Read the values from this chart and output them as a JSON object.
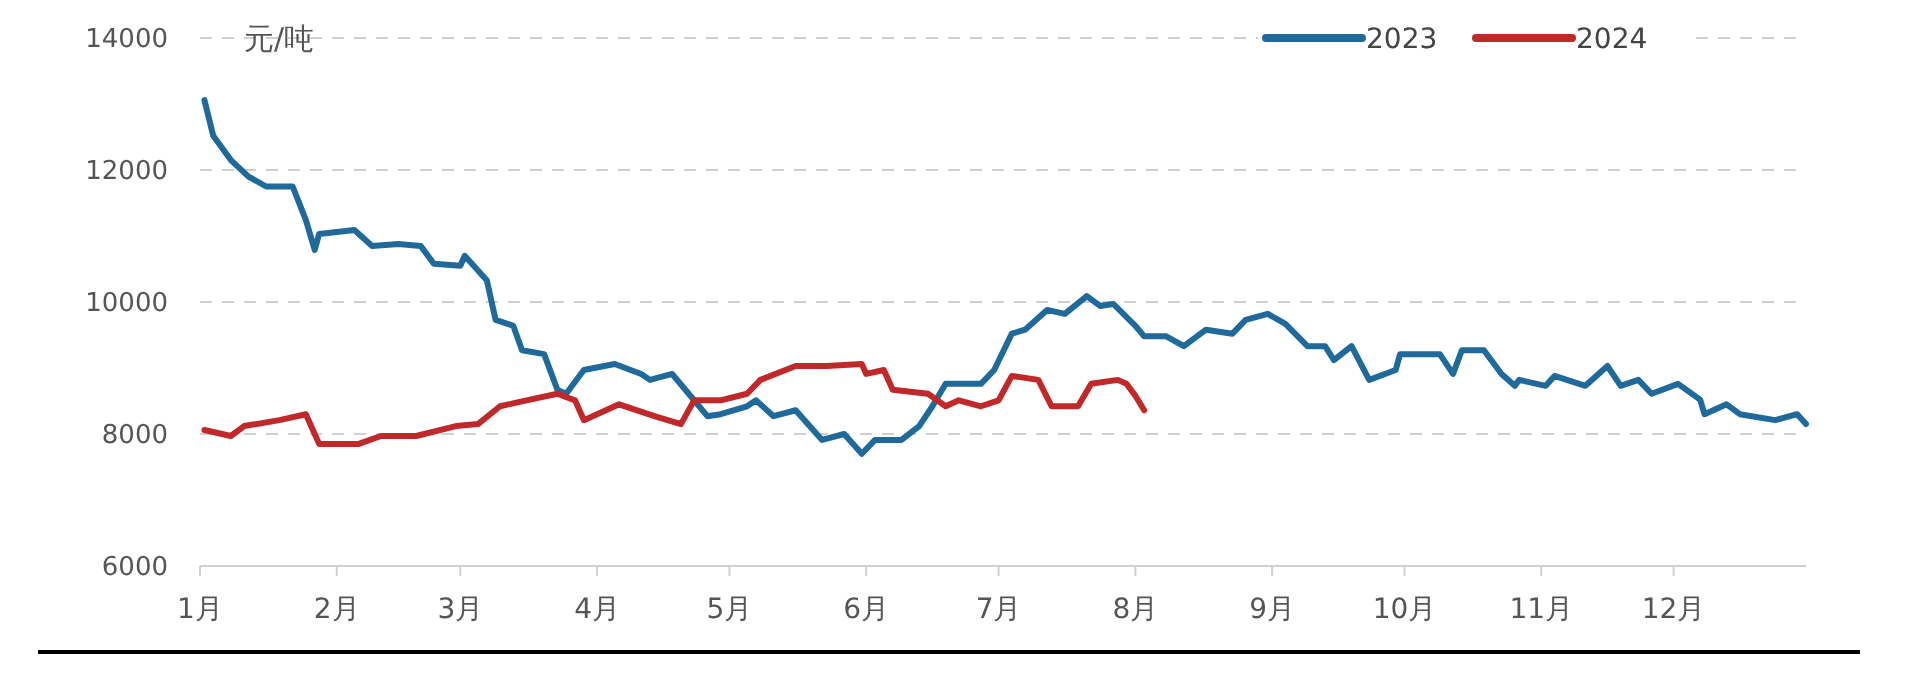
{
  "chart_data": {
    "type": "line",
    "ylabel": "元/吨",
    "xlim": [
      "--01-01",
      "--12-31"
    ],
    "xticks": [
      {
        "value": "--01-01",
        "label": "1月"
      },
      {
        "value": "--02-01",
        "label": "2月"
      },
      {
        "value": "--03-01",
        "label": "3月"
      },
      {
        "value": "--04-01",
        "label": "4月"
      },
      {
        "value": "--05-01",
        "label": "5月"
      },
      {
        "value": "--06-01",
        "label": "6月"
      },
      {
        "value": "--07-01",
        "label": "7月"
      },
      {
        "value": "--08-01",
        "label": "8月"
      },
      {
        "value": "--09-01",
        "label": "9月"
      },
      {
        "value": "--10-01",
        "label": "10月"
      },
      {
        "value": "--11-01",
        "label": "11月"
      },
      {
        "value": "--12-01",
        "label": "12月"
      }
    ],
    "ylim": [
      6000,
      14000
    ],
    "yticks": [
      6000,
      8000,
      10000,
      12000,
      14000
    ],
    "grid": "y",
    "legend": "top right",
    "line_style": "solid",
    "marker": "none",
    "series": [
      {
        "name": "2023",
        "color": "#1f6a9a",
        "x": [
          "--01-02",
          "--01-04",
          "--01-08",
          "--01-12",
          "--01-16",
          "--01-22",
          "--01-25",
          "--01-27",
          "--01-28",
          "--02-05",
          "--02-09",
          "--02-15",
          "--02-20",
          "--02-23",
          "--03-01",
          "--03-02",
          "--03-07",
          "--03-09",
          "--03-13",
          "--03-15",
          "--03-20",
          "--03-23",
          "--03-25",
          "--03-29",
          "--04-05",
          "--04-11",
          "--04-13",
          "--04-18",
          "--04-21",
          "--04-26",
          "--04-29",
          "--05-05",
          "--05-07",
          "--05-11",
          "--05-16",
          "--05-22",
          "--05-27",
          "--05-31",
          "--06-03",
          "--06-09",
          "--06-13",
          "--06-16",
          "--06-19",
          "--06-27",
          "--06-30",
          "--07-04",
          "--07-07",
          "--07-12",
          "--07-16",
          "--07-21",
          "--07-24",
          "--07-27",
          "--08-01",
          "--08-03",
          "--08-08",
          "--08-12",
          "--08-17",
          "--08-23",
          "--08-26",
          "--08-31",
          "--09-04",
          "--09-09",
          "--09-13",
          "--09-15",
          "--09-19",
          "--09-23",
          "--09-29",
          "--09-30",
          "--10-09",
          "--10-12",
          "--10-14",
          "--10-19",
          "--10-23",
          "--10-26",
          "--10-27",
          "--11-02",
          "--11-04",
          "--11-11",
          "--11-16",
          "--11-19",
          "--11-23",
          "--11-26",
          "--12-02",
          "--12-07",
          "--12-08",
          "--12-13",
          "--12-16",
          "--12-24",
          "--12-29",
          "--12-31"
        ],
        "values": [
          13060,
          12520,
          12150,
          11900,
          11750,
          11750,
          11240,
          10790,
          11030,
          11090,
          10850,
          10880,
          10850,
          10580,
          10550,
          10700,
          10330,
          9730,
          9640,
          9270,
          9210,
          8670,
          8610,
          8970,
          9060,
          8910,
          8820,
          8910,
          8670,
          8270,
          8300,
          8420,
          8510,
          8270,
          8360,
          7910,
          8000,
          7700,
          7910,
          7910,
          8120,
          8420,
          8760,
          8760,
          8970,
          9520,
          9580,
          9880,
          9820,
          10090,
          9940,
          9970,
          9640,
          9480,
          9480,
          9330,
          9580,
          9520,
          9730,
          9820,
          9670,
          9330,
          9330,
          9120,
          9330,
          8820,
          8970,
          9210,
          9210,
          8910,
          9270,
          9270,
          8910,
          8730,
          8820,
          8730,
          8880,
          8730,
          9030,
          8730,
          8820,
          8610,
          8760,
          8520,
          8300,
          8450,
          8300,
          8210,
          8300,
          8150
        ]
      },
      {
        "name": "2024",
        "color": "#c0282a",
        "x": [
          "--01-02",
          "--01-08",
          "--01-11",
          "--01-19",
          "--01-25",
          "--01-28",
          "--02-06",
          "--02-11",
          "--02-19",
          "--02-28",
          "--03-05",
          "--03-10",
          "--03-16",
          "--03-23",
          "--03-27",
          "--03-29",
          "--04-06",
          "--04-14",
          "--04-20",
          "--04-23",
          "--04-29",
          "--05-05",
          "--05-08",
          "--05-16",
          "--05-23",
          "--05-31",
          "--06-01",
          "--06-05",
          "--06-07",
          "--06-15",
          "--06-19",
          "--06-22",
          "--06-27",
          "--07-01",
          "--07-04",
          "--07-10",
          "--07-13",
          "--07-19",
          "--07-22",
          "--07-28",
          "--07-30",
          "--08-01",
          "--08-03"
        ],
        "values": [
          8060,
          7970,
          8120,
          8210,
          8300,
          7850,
          7850,
          7970,
          7970,
          8120,
          8150,
          8420,
          8510,
          8610,
          8510,
          8210,
          8450,
          8270,
          8150,
          8510,
          8510,
          8610,
          8820,
          9030,
          9030,
          9060,
          8910,
          8970,
          8670,
          8610,
          8420,
          8510,
          8420,
          8510,
          8880,
          8820,
          8420,
          8420,
          8760,
          8820,
          8760,
          8580,
          8360
        ]
      }
    ]
  }
}
